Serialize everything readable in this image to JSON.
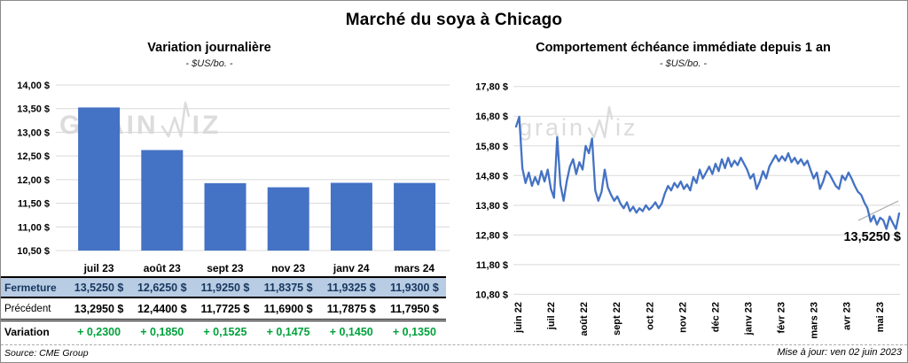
{
  "page": {
    "title": "Marché du soya à Chicago",
    "source": "Source: CME Group",
    "updated": "Mise à jour: ven 02 juin 2023",
    "watermark_a": "grain",
    "watermark_b": "iz",
    "watermark_full": "grainwiz"
  },
  "colors": {
    "accent_blue": "#4472C4",
    "gridline": "#D9D9D9",
    "table_highlight_bg": "#B8CCE4",
    "table_highlight_text": "#17375E",
    "variation_green": "#00A23C",
    "watermark_gray": "#C7C7C7",
    "leader_gray": "#A6A6A6"
  },
  "table": {
    "columns": [
      "juil 23",
      "août 23",
      "sept 23",
      "nov 23",
      "janv 24",
      "mars 24"
    ],
    "rows": [
      {
        "label": "Fermeture",
        "style": "highlight",
        "values": [
          "13,5250  $",
          "12,6250  $",
          "11,9250  $",
          "11,8375  $",
          "11,9325  $",
          "11,9300  $"
        ]
      },
      {
        "label": "Précédent",
        "style": "normal",
        "values": [
          "13,2950  $",
          "12,4400  $",
          "11,7725  $",
          "11,6900  $",
          "11,7875  $",
          "11,7950  $"
        ]
      },
      {
        "label": "Variation",
        "style": "green",
        "values": [
          "+ 0,2300",
          "+ 0,1850",
          "+ 0,1525",
          "+ 0,1475",
          "+ 0,1450",
          "+ 0,1350"
        ]
      }
    ]
  },
  "chart_data": [
    {
      "type": "bar",
      "title": "Variation  journalière",
      "subtitle": "- $US/bo. -",
      "categories": [
        "juil 23",
        "août 23",
        "sept 23",
        "nov 23",
        "janv 24",
        "mars 24"
      ],
      "values": [
        13.525,
        12.625,
        11.925,
        11.8375,
        11.9325,
        11.93
      ],
      "ylim": [
        10.5,
        14.0
      ],
      "ystep": 0.5,
      "ytick_labels": [
        "14,00 $",
        "13,50 $",
        "13,00 $",
        "12,50 $",
        "12,00 $",
        "11,50 $",
        "11,00 $",
        "10,50 $"
      ],
      "bar_color": "#4472C4",
      "grid": true,
      "legend": "none"
    },
    {
      "type": "line",
      "title": "Comportement  échéance immédiate depuis 1 an",
      "subtitle": "- $US/bo. -",
      "x_tick_labels": [
        "juin 22",
        "juil 22",
        "août 22",
        "sept 22",
        "oct 22",
        "nov 22",
        "déc 22",
        "janv 23",
        "févr 23",
        "mars 23",
        "avr 23",
        "mai 23"
      ],
      "values": [
        16.45,
        16.78,
        15.05,
        14.55,
        14.9,
        14.45,
        14.75,
        14.5,
        14.95,
        14.6,
        15.0,
        14.35,
        14.05,
        16.1,
        14.5,
        13.95,
        14.6,
        15.1,
        15.35,
        14.85,
        15.25,
        15.0,
        15.8,
        15.55,
        16.05,
        14.3,
        13.95,
        14.25,
        15.0,
        14.4,
        14.15,
        13.95,
        14.1,
        13.85,
        13.7,
        13.9,
        13.6,
        13.75,
        13.55,
        13.7,
        13.6,
        13.8,
        13.65,
        13.75,
        13.9,
        13.7,
        13.85,
        14.2,
        14.45,
        14.3,
        14.55,
        14.4,
        14.6,
        14.35,
        14.5,
        14.3,
        14.75,
        14.55,
        15.0,
        14.7,
        14.9,
        15.1,
        14.85,
        15.2,
        14.95,
        15.35,
        15.05,
        15.4,
        15.1,
        15.3,
        15.15,
        15.4,
        15.2,
        15.0,
        14.7,
        14.85,
        14.35,
        14.6,
        14.95,
        14.7,
        15.1,
        15.3,
        15.48,
        15.28,
        15.45,
        15.3,
        15.55,
        15.25,
        15.4,
        15.2,
        15.35,
        15.15,
        15.3,
        15.0,
        14.7,
        14.9,
        14.35,
        14.6,
        14.95,
        14.85,
        14.65,
        14.45,
        14.35,
        14.8,
        14.65,
        14.9,
        14.7,
        14.45,
        14.25,
        14.15,
        13.9,
        13.7,
        13.25,
        13.45,
        13.15,
        13.38,
        13.3,
        13.0,
        13.42,
        13.2,
        13.0,
        13.525
      ],
      "ylim": [
        10.8,
        17.8
      ],
      "ystep": 1.0,
      "ytick_labels": [
        "17,80 $",
        "16,80 $",
        "15,80 $",
        "14,80 $",
        "13,80 $",
        "12,80 $",
        "11,80 $",
        "10,80 $"
      ],
      "line_color": "#4472C4",
      "grid": true,
      "legend": "none",
      "annotation": {
        "label": "13,5250 $",
        "value": 13.525
      }
    }
  ]
}
